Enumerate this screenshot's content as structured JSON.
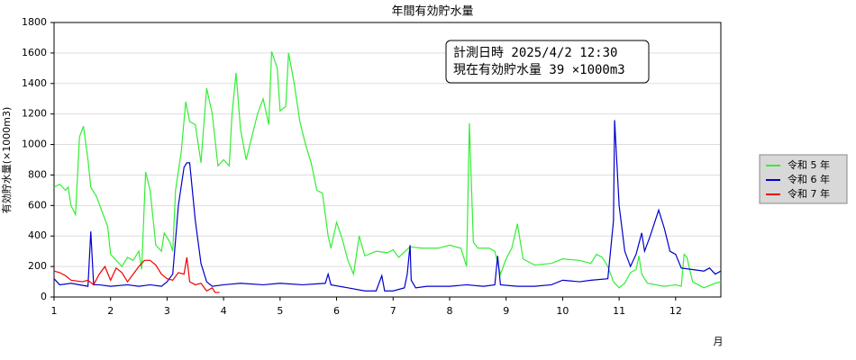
{
  "chart_data": {
    "type": "line",
    "title": "年間有効貯水量",
    "y_label": "有効貯水量(×1000m3)",
    "x_label": "月",
    "annotation": [
      "計測日時 2025/4/2 12:30",
      "現在有効貯水量 39 ×1000m3"
    ],
    "xlim": [
      1,
      12.8
    ],
    "xticks": [
      1,
      2,
      3,
      4,
      5,
      6,
      7,
      8,
      9,
      10,
      11,
      12
    ],
    "ylim": [
      0,
      1800
    ],
    "yticks": [
      0,
      200,
      400,
      600,
      800,
      1000,
      1200,
      1400,
      1600,
      1800
    ],
    "grid": true,
    "legend": "right",
    "series": [
      {
        "name": "令和 5 年",
        "color": "#33ee33",
        "x": [
          1.0,
          1.1,
          1.2,
          1.25,
          1.3,
          1.38,
          1.45,
          1.52,
          1.6,
          1.65,
          1.75,
          1.85,
          1.95,
          2.0,
          2.1,
          2.2,
          2.3,
          2.4,
          2.5,
          2.55,
          2.62,
          2.7,
          2.8,
          2.9,
          2.95,
          3.05,
          3.1,
          3.15,
          3.25,
          3.33,
          3.4,
          3.5,
          3.6,
          3.7,
          3.8,
          3.9,
          3.95,
          4.0,
          4.1,
          4.15,
          4.22,
          4.3,
          4.4,
          4.5,
          4.6,
          4.7,
          4.8,
          4.85,
          4.95,
          5.0,
          5.1,
          5.15,
          5.25,
          5.35,
          5.45,
          5.55,
          5.65,
          5.75,
          5.85,
          5.9,
          6.0,
          6.1,
          6.2,
          6.3,
          6.4,
          6.5,
          6.7,
          6.9,
          7.0,
          7.1,
          7.3,
          7.5,
          7.8,
          8.0,
          8.2,
          8.3,
          8.35,
          8.42,
          8.5,
          8.7,
          8.8,
          8.9,
          9.0,
          9.1,
          9.2,
          9.3,
          9.5,
          9.8,
          10.0,
          10.3,
          10.5,
          10.6,
          10.7,
          10.8,
          10.9,
          11.0,
          11.1,
          11.2,
          11.3,
          11.35,
          11.4,
          11.5,
          11.8,
          12.0,
          12.1,
          12.15,
          12.2,
          12.3,
          12.4,
          12.5,
          12.7,
          12.8
        ],
        "values": [
          720,
          740,
          700,
          720,
          600,
          540,
          1050,
          1120,
          900,
          720,
          660,
          560,
          460,
          280,
          240,
          200,
          260,
          240,
          300,
          180,
          820,
          700,
          340,
          300,
          420,
          360,
          300,
          700,
          950,
          1280,
          1150,
          1130,
          880,
          1370,
          1200,
          860,
          880,
          900,
          860,
          1200,
          1470,
          1100,
          900,
          1050,
          1200,
          1300,
          1130,
          1610,
          1500,
          1220,
          1250,
          1600,
          1400,
          1150,
          1000,
          880,
          700,
          680,
          400,
          320,
          490,
          380,
          240,
          150,
          400,
          270,
          300,
          290,
          310,
          260,
          330,
          320,
          320,
          340,
          320,
          200,
          1140,
          360,
          320,
          320,
          300,
          150,
          250,
          320,
          480,
          250,
          210,
          220,
          250,
          240,
          220,
          280,
          260,
          200,
          100,
          60,
          90,
          160,
          180,
          270,
          150,
          90,
          70,
          80,
          70,
          280,
          260,
          100,
          80,
          60,
          90,
          100
        ]
      },
      {
        "name": "令和 6 年",
        "color": "#0000cc",
        "x": [
          1.0,
          1.1,
          1.3,
          1.6,
          1.65,
          1.7,
          1.8,
          2.0,
          2.3,
          2.5,
          2.7,
          2.9,
          3.0,
          3.1,
          3.2,
          3.3,
          3.35,
          3.4,
          3.5,
          3.6,
          3.7,
          3.8,
          4.0,
          4.3,
          4.7,
          5.0,
          5.4,
          5.8,
          5.85,
          5.9,
          6.2,
          6.5,
          6.7,
          6.8,
          6.85,
          7.0,
          7.2,
          7.25,
          7.3,
          7.32,
          7.4,
          7.6,
          8.0,
          8.3,
          8.6,
          8.8,
          8.85,
          8.9,
          9.2,
          9.5,
          9.8,
          10.0,
          10.3,
          10.5,
          10.8,
          10.9,
          10.92,
          11.0,
          11.1,
          11.2,
          11.3,
          11.4,
          11.45,
          11.55,
          11.7,
          11.8,
          11.9,
          12.0,
          12.1,
          12.3,
          12.5,
          12.6,
          12.7,
          12.8
        ],
        "values": [
          120,
          80,
          90,
          70,
          430,
          80,
          80,
          70,
          80,
          70,
          80,
          70,
          100,
          150,
          600,
          850,
          880,
          880,
          500,
          220,
          100,
          70,
          80,
          90,
          80,
          90,
          80,
          90,
          150,
          80,
          60,
          40,
          40,
          140,
          40,
          40,
          60,
          150,
          340,
          110,
          60,
          70,
          70,
          80,
          70,
          80,
          270,
          80,
          70,
          70,
          80,
          110,
          100,
          110,
          120,
          500,
          1160,
          600,
          300,
          200,
          280,
          420,
          300,
          400,
          570,
          450,
          300,
          280,
          190,
          180,
          170,
          190,
          150,
          170
        ]
      },
      {
        "name": "令和 7 年",
        "color": "#ee0000",
        "x": [
          1.0,
          1.1,
          1.2,
          1.3,
          1.5,
          1.6,
          1.7,
          1.8,
          1.9,
          2.0,
          2.1,
          2.2,
          2.3,
          2.4,
          2.5,
          2.6,
          2.7,
          2.8,
          2.9,
          3.0,
          3.1,
          3.2,
          3.3,
          3.35,
          3.4,
          3.5,
          3.6,
          3.7,
          3.8,
          3.85,
          3.93
        ],
        "values": [
          170,
          160,
          140,
          110,
          100,
          110,
          80,
          150,
          200,
          110,
          190,
          160,
          100,
          150,
          200,
          240,
          240,
          210,
          150,
          120,
          110,
          160,
          150,
          260,
          100,
          80,
          90,
          40,
          60,
          30,
          30
        ]
      }
    ]
  }
}
